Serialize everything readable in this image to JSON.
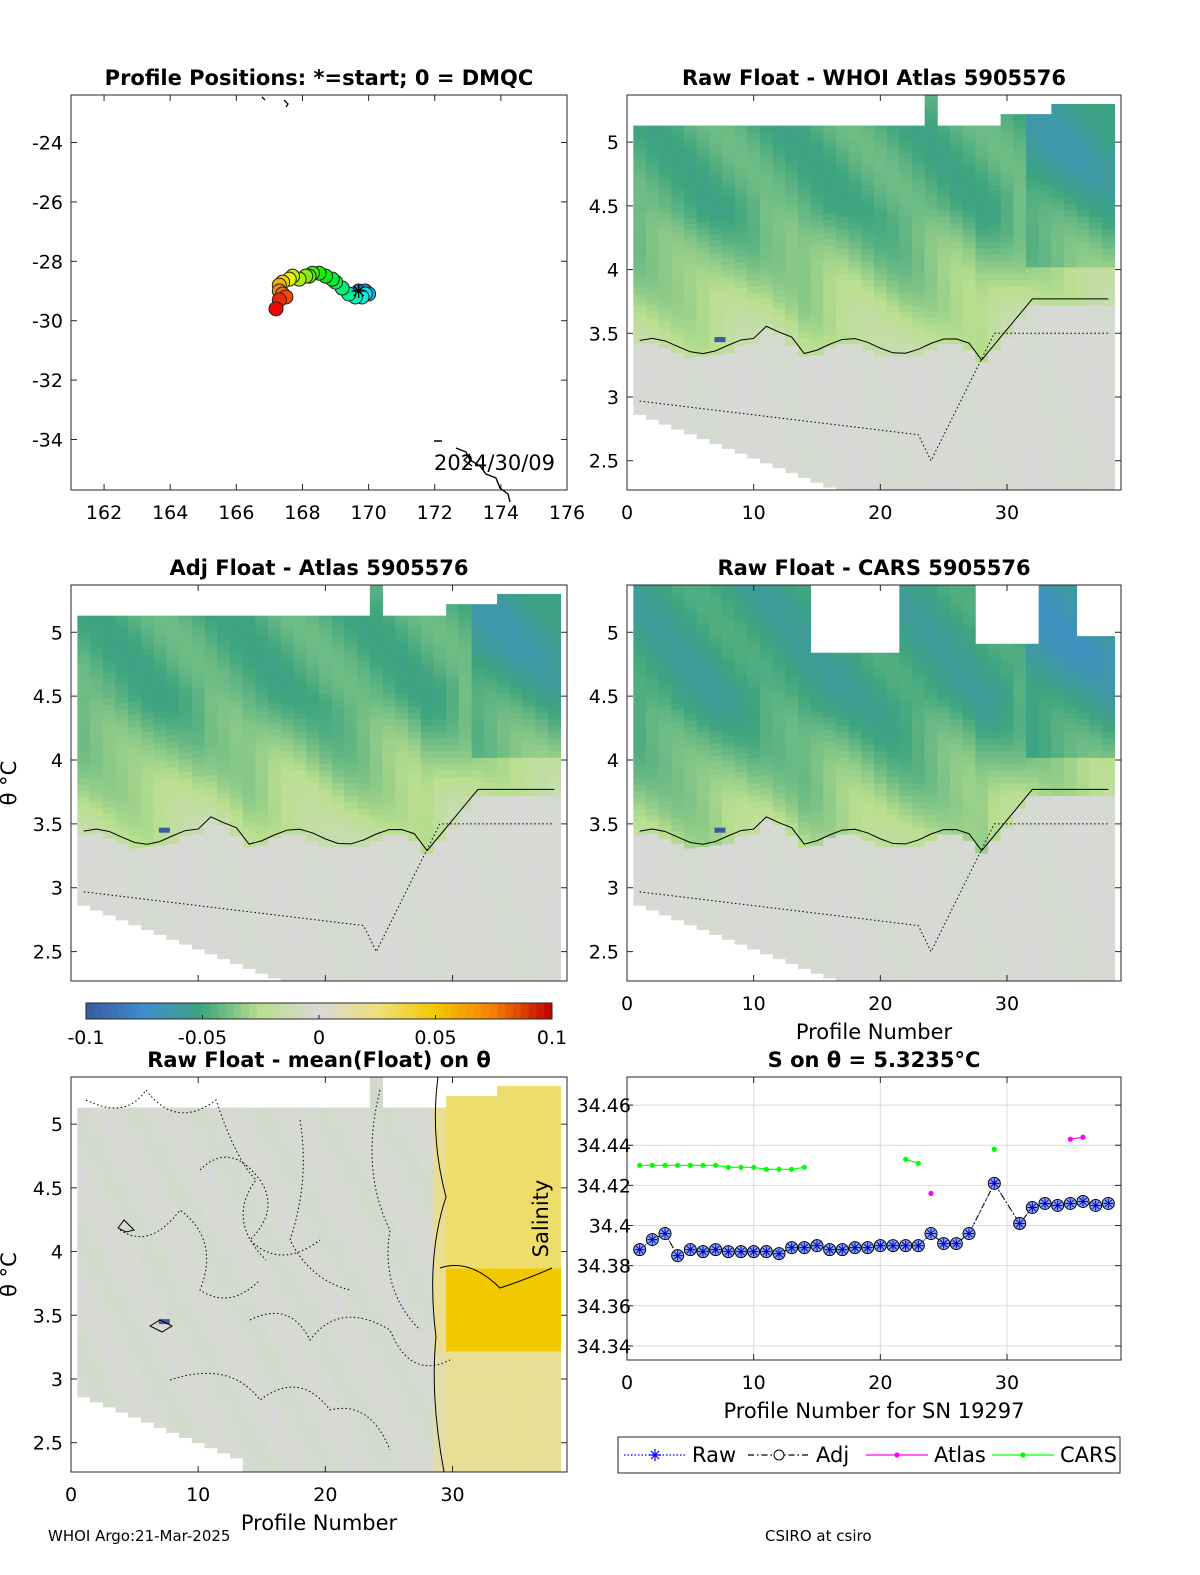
{
  "footer": {
    "left": "WHOI Argo:21-Mar-2025",
    "right": "CSIRO at csiro"
  },
  "colors": {
    "raw": "#0000ff",
    "adj": "#000000",
    "atlas": "#ff00ff",
    "cars": "#00ff00",
    "cmap_low": "#3a5aa0",
    "cmap_mid": "#d9d9d9",
    "cmap_high": "#c00000"
  },
  "chart_data": [
    {
      "id": "map",
      "type": "scatter",
      "title": "Profile Positions: *=start; 0 = DMQC",
      "date_label": "2024/30/09",
      "xlim": [
        161,
        176
      ],
      "ylim": [
        -35.7,
        -22.4
      ],
      "xticks": [
        "162",
        "164",
        "166",
        "168",
        "170",
        "172",
        "174",
        "176"
      ],
      "yticks": [
        "-24",
        "-26",
        "-28",
        "-30",
        "-32",
        "-34"
      ],
      "colormap": "jet (start=blue/cyan, end=red)",
      "lon": [
        169.7,
        169.9,
        170.0,
        169.9,
        169.8,
        169.6,
        169.4,
        169.2,
        169.0,
        168.9,
        168.7,
        168.5,
        168.3,
        168.2,
        168.1,
        167.9,
        167.7,
        167.6,
        167.4,
        167.3,
        167.3,
        167.4,
        167.5,
        167.3,
        167.2
      ],
      "lat": [
        -29.0,
        -29.0,
        -29.1,
        -29.1,
        -29.2,
        -29.2,
        -29.1,
        -28.9,
        -28.7,
        -28.6,
        -28.5,
        -28.4,
        -28.4,
        -28.5,
        -28.5,
        -28.6,
        -28.5,
        -28.6,
        -28.7,
        -28.8,
        -29.0,
        -29.1,
        -29.2,
        -29.3,
        -29.6
      ]
    },
    {
      "id": "raw_whoi",
      "type": "heatmap",
      "title": "Raw Float - WHOI Atlas  5905576",
      "xlim": [
        0,
        39
      ],
      "ylim": [
        2.27,
        5.37
      ],
      "xticks": [
        "0",
        "10",
        "20",
        "30"
      ],
      "yticks": [
        "5",
        "4.5",
        "4",
        "3.5",
        "3",
        "2.5"
      ],
      "xlabel": "",
      "ylabel": ""
    },
    {
      "id": "adj_atlas",
      "type": "heatmap",
      "title": "Adj Float - Atlas  5905576",
      "xlim": [
        0,
        39
      ],
      "ylim": [
        2.27,
        5.37
      ],
      "yticks": [
        "5",
        "4.5",
        "4",
        "3.5",
        "3",
        "2.5"
      ],
      "xlabel": "",
      "ylabel": "θ °C"
    },
    {
      "id": "raw_cars",
      "type": "heatmap",
      "title": "Raw Float - CARS  5905576",
      "xlim": [
        0,
        39
      ],
      "ylim": [
        2.27,
        5.37
      ],
      "xticks": [
        "0",
        "10",
        "20",
        "30"
      ],
      "yticks": [
        "5",
        "4.5",
        "4",
        "3.5",
        "3",
        "2.5"
      ],
      "xlabel": "Profile Number",
      "ylabel": ""
    },
    {
      "id": "colorbar",
      "type": "heatmap",
      "range": [
        -0.1,
        0.1
      ],
      "ticks": [
        "-0.1",
        "-0.05",
        "0",
        "0.05",
        "0.1"
      ]
    },
    {
      "id": "raw_mean",
      "type": "heatmap",
      "title": "Raw Float - mean(Float) on θ",
      "xlim": [
        0,
        39
      ],
      "ylim": [
        2.27,
        5.37
      ],
      "xticks": [
        "0",
        "10",
        "20",
        "30"
      ],
      "yticks": [
        "5",
        "4.5",
        "4",
        "3.5",
        "3",
        "2.5"
      ],
      "xlabel": "Profile Number",
      "ylabel": "θ °C"
    },
    {
      "id": "salinity",
      "type": "line",
      "title": "S on θ = 5.3235°C",
      "xlabel": "Profile Number for SN 19297",
      "ylabel": "Salinity",
      "xlim": [
        0,
        39
      ],
      "ylim": [
        34.333,
        34.474
      ],
      "xticks": [
        "0",
        "10",
        "20",
        "30"
      ],
      "yticks": [
        "34.46",
        "34.44",
        "34.42",
        "34.4",
        "34.38",
        "34.36",
        "34.34"
      ],
      "grid": true,
      "legend": [
        "Raw",
        "Adj",
        "Atlas",
        "CARS"
      ],
      "legend_placement": "below",
      "series": [
        {
          "name": "Raw",
          "x": [
            1,
            2,
            3,
            4,
            5,
            6,
            7,
            8,
            9,
            10,
            11,
            12,
            13,
            14,
            15,
            16,
            17,
            18,
            19,
            20,
            21,
            22,
            23,
            24,
            25,
            26,
            27,
            29,
            31,
            32,
            33,
            34,
            35,
            36,
            37,
            38
          ],
          "values": [
            34.388,
            34.393,
            34.396,
            34.385,
            34.388,
            34.387,
            34.388,
            34.387,
            34.387,
            34.387,
            34.387,
            34.386,
            34.389,
            34.389,
            34.39,
            34.388,
            34.388,
            34.389,
            34.389,
            34.39,
            34.39,
            34.39,
            34.39,
            34.396,
            34.391,
            34.391,
            34.396,
            34.421,
            34.401,
            34.409,
            34.411,
            34.41,
            34.411,
            34.412,
            34.41,
            34.411
          ]
        },
        {
          "name": "Adj",
          "x": [
            1,
            2,
            3,
            4,
            5,
            6,
            7,
            8,
            9,
            10,
            11,
            12,
            13,
            14,
            15,
            16,
            17,
            18,
            19,
            20,
            21,
            22,
            23,
            24,
            25,
            26,
            27,
            29,
            31,
            32,
            33,
            34,
            35,
            36,
            37,
            38
          ],
          "values": [
            34.388,
            34.393,
            34.396,
            34.385,
            34.388,
            34.387,
            34.388,
            34.387,
            34.387,
            34.387,
            34.387,
            34.386,
            34.389,
            34.389,
            34.39,
            34.388,
            34.388,
            34.389,
            34.389,
            34.39,
            34.39,
            34.39,
            34.39,
            34.396,
            34.391,
            34.391,
            34.396,
            34.421,
            34.401,
            34.409,
            34.411,
            34.41,
            34.411,
            34.412,
            34.41,
            34.411
          ]
        },
        {
          "name": "Atlas",
          "segments": [
            {
              "x": [
                24
              ],
              "values": [
                34.416
              ]
            },
            {
              "x": [
                35,
                36
              ],
              "values": [
                34.443,
                34.444
              ]
            }
          ]
        },
        {
          "name": "CARS",
          "segments": [
            {
              "x": [
                1,
                2,
                3,
                4,
                5,
                6,
                7,
                8,
                9,
                10,
                11,
                12,
                13,
                14
              ],
              "values": [
                34.43,
                34.43,
                34.43,
                34.43,
                34.43,
                34.43,
                34.43,
                34.429,
                34.429,
                34.429,
                34.428,
                34.428,
                34.428,
                34.429
              ]
            },
            {
              "x": [
                22,
                23
              ],
              "values": [
                34.433,
                34.431
              ]
            },
            {
              "x": [
                29
              ],
              "values": [
                34.438
              ]
            }
          ]
        }
      ]
    }
  ]
}
